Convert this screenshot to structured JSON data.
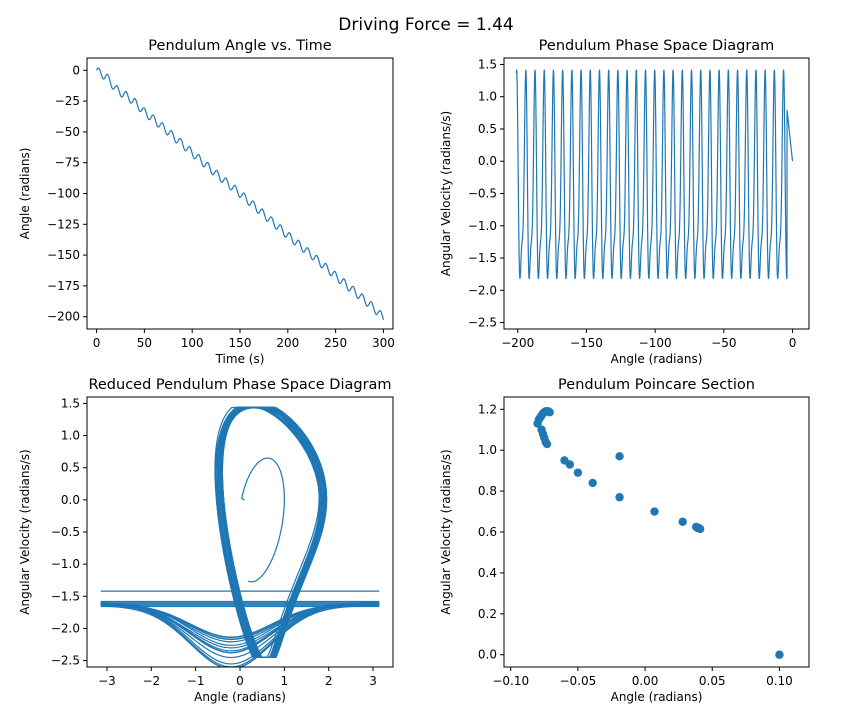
{
  "figure": {
    "suptitle": "Driving Force = 1.44"
  },
  "chart_data": [
    {
      "type": "line",
      "title": "Pendulum Angle vs. Time",
      "xlabel": "Time (s)",
      "ylabel": "Angle (radians)",
      "xlim": [
        -10,
        310
      ],
      "ylim": [
        -210,
        10
      ],
      "xticks": [
        0,
        50,
        100,
        150,
        200,
        250,
        300
      ],
      "yticks": [
        0,
        -25,
        -50,
        -75,
        -100,
        -125,
        -150,
        -175,
        -200
      ],
      "grid": false,
      "color": "#1f77b4",
      "series": [
        {
          "x": [
            0,
            5,
            10,
            15,
            20,
            25,
            30,
            40,
            50,
            60,
            75,
            100,
            125,
            150,
            175,
            200,
            225,
            250,
            275,
            290,
            300
          ],
          "y": [
            0,
            -3,
            -5,
            -10,
            -15,
            -18,
            -20,
            -26,
            -34,
            -40,
            -50,
            -67,
            -84,
            -100,
            -117,
            -134,
            -150,
            -167,
            -183,
            -193,
            -201
          ]
        }
      ]
    },
    {
      "type": "line",
      "title": "Pendulum Phase Space Diagram",
      "xlabel": "Angle (radians)",
      "ylabel": "Angular Velocity (radians/s)",
      "xlim": [
        -210,
        12
      ],
      "ylim": [
        -2.6,
        1.6
      ],
      "xticks": [
        -200,
        -150,
        -100,
        -50,
        0
      ],
      "yticks": [
        1.5,
        1.0,
        0.5,
        0.0,
        -0.5,
        -1.0,
        -1.5,
        -2.0,
        -2.5
      ],
      "grid": false,
      "color": "#1f77b4",
      "series": [
        {
          "x": [
            0,
            -201
          ],
          "y_range": [
            -2.45,
            1.44
          ]
        }
      ]
    },
    {
      "type": "line",
      "title": "Reduced Pendulum Phase Space Diagram",
      "xlabel": "Angle (radians)",
      "ylabel": "Angular Velocity (radians/s)",
      "xlim": [
        -3.45,
        3.45
      ],
      "ylim": [
        -2.6,
        1.6
      ],
      "xticks": [
        -3,
        -2,
        -1,
        0,
        1,
        2,
        3
      ],
      "yticks": [
        1.5,
        1.0,
        0.5,
        0.0,
        -0.5,
        -1.0,
        -1.5,
        -2.0,
        -2.5
      ],
      "grid": false,
      "color": "#1f77b4",
      "series": [
        {
          "x": [
            0.1,
            3.14
          ],
          "y_range": [
            -2.45,
            1.44
          ]
        }
      ]
    },
    {
      "type": "scatter",
      "title": "Pendulum Poincare Section",
      "xlabel": "Angle (radians)",
      "ylabel": "Angular Velocity (radians/s)",
      "xlim": [
        -0.105,
        0.122
      ],
      "ylim": [
        -0.06,
        1.26
      ],
      "xticks": [
        -0.1,
        -0.05,
        0.0,
        0.05,
        0.1
      ],
      "yticks": [
        0.0,
        0.2,
        0.4,
        0.6,
        0.8,
        1.0,
        1.2
      ],
      "grid": false,
      "color": "#1f77b4",
      "series": [
        {
          "x": [
            -0.08,
            -0.079,
            -0.078,
            -0.077,
            -0.076,
            -0.075,
            -0.074,
            -0.073,
            -0.072,
            -0.071,
            -0.077,
            -0.076,
            -0.075,
            -0.074,
            -0.073,
            -0.06,
            -0.056,
            -0.05,
            -0.039,
            -0.019,
            -0.019,
            0.007,
            0.028,
            0.038,
            0.039,
            0.04,
            0.041,
            0.1
          ],
          "y": [
            1.13,
            1.15,
            1.16,
            1.17,
            1.18,
            1.185,
            1.19,
            1.19,
            1.19,
            1.185,
            1.1,
            1.08,
            1.06,
            1.04,
            1.03,
            0.95,
            0.93,
            0.89,
            0.84,
            0.97,
            0.77,
            0.7,
            0.65,
            0.625,
            0.62,
            0.62,
            0.615,
            0.0
          ]
        }
      ]
    }
  ]
}
